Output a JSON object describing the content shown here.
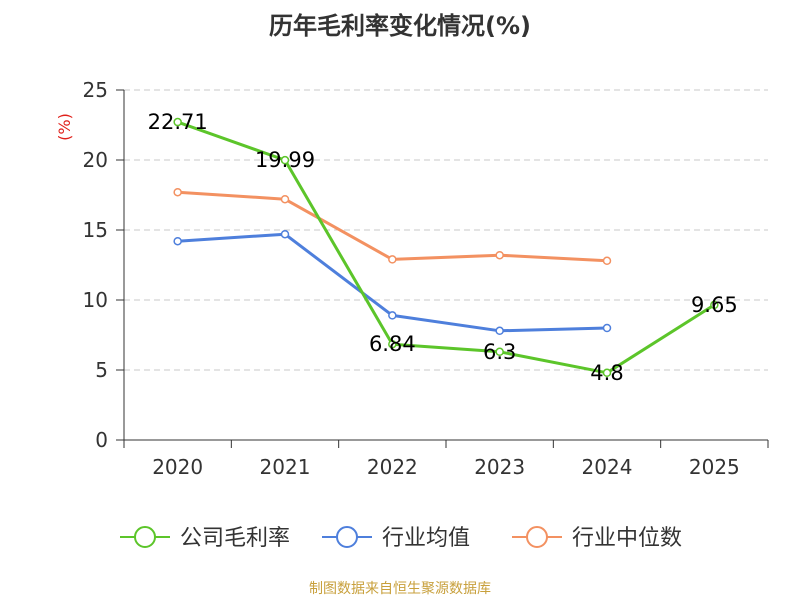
{
  "chart_data": {
    "type": "line",
    "title": "历年毛利率变化情况(%)",
    "ylabel": "(%)",
    "xlabel": "",
    "ylim": [
      0,
      25
    ],
    "yticks": [
      0,
      5,
      10,
      15,
      20,
      25
    ],
    "categories": [
      "2020",
      "2021",
      "2022",
      "2023",
      "2024",
      "2025"
    ],
    "grid": true,
    "legend_position": "bottom",
    "series": [
      {
        "name": "公司毛利率",
        "color": "#5cc52a",
        "labeled": true,
        "values": [
          22.71,
          19.99,
          6.84,
          6.3,
          4.8,
          9.65
        ],
        "labels": [
          "22.71",
          "19.99",
          "6.84",
          "6.3",
          "4.8",
          "9.65"
        ]
      },
      {
        "name": "行业均值",
        "color": "#4e7fdc",
        "labeled": false,
        "values": [
          14.2,
          14.7,
          8.9,
          7.8,
          8.0,
          null
        ]
      },
      {
        "name": "行业中位数",
        "color": "#f39161",
        "labeled": false,
        "values": [
          17.7,
          17.2,
          12.9,
          13.2,
          12.8,
          null
        ]
      }
    ]
  },
  "footer": {
    "source": "制图数据来自恒生聚源数据库"
  }
}
